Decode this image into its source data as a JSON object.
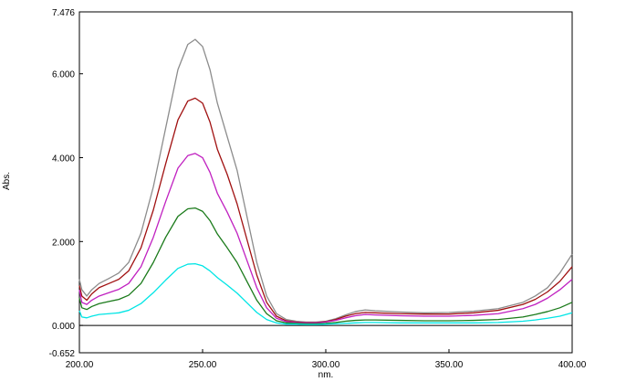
{
  "chart_data": {
    "type": "line",
    "xlabel": "nm.",
    "ylabel": "Abs.",
    "xlim": [
      200,
      400
    ],
    "ylim": [
      -0.652,
      7.476
    ],
    "x_ticks": [
      200,
      250,
      300,
      350,
      400
    ],
    "x_tick_labels": [
      "200.00",
      "250.00",
      "300.00",
      "350.00",
      "400.00"
    ],
    "y_ticks": [
      -0.652,
      0,
      2,
      4,
      6,
      7.476
    ],
    "y_tick_labels": [
      "-0.652",
      "0.000",
      "2.000",
      "4.000",
      "6.000",
      "7.476"
    ],
    "baseline": 0,
    "grid": false,
    "legend": "none",
    "series": [
      {
        "color": "#8c8c8c",
        "x": [
          200,
          201,
          203,
          205,
          208,
          212,
          216,
          220,
          225,
          230,
          235,
          240,
          244,
          247,
          250,
          253,
          256,
          260,
          264,
          268,
          272,
          276,
          280,
          284,
          288,
          292,
          296,
          300,
          304,
          308,
          312,
          316,
          320,
          330,
          340,
          350,
          360,
          370,
          380,
          385,
          390,
          395,
          400
        ],
        "y": [
          1.1,
          0.85,
          0.7,
          0.85,
          1.0,
          1.12,
          1.25,
          1.5,
          2.2,
          3.3,
          4.7,
          6.1,
          6.7,
          6.82,
          6.65,
          6.1,
          5.3,
          4.5,
          3.7,
          2.6,
          1.5,
          0.7,
          0.28,
          0.14,
          0.1,
          0.08,
          0.08,
          0.1,
          0.16,
          0.25,
          0.33,
          0.37,
          0.35,
          0.32,
          0.3,
          0.31,
          0.34,
          0.4,
          0.55,
          0.7,
          0.9,
          1.25,
          1.7
        ]
      },
      {
        "color": "#a01010",
        "x": [
          200,
          201,
          203,
          205,
          208,
          212,
          216,
          220,
          225,
          230,
          235,
          240,
          244,
          247,
          250,
          253,
          256,
          260,
          264,
          268,
          272,
          276,
          280,
          284,
          288,
          292,
          296,
          300,
          304,
          308,
          312,
          316,
          320,
          330,
          340,
          350,
          360,
          370,
          380,
          385,
          390,
          395,
          400
        ],
        "y": [
          0.95,
          0.7,
          0.6,
          0.75,
          0.9,
          1.0,
          1.1,
          1.3,
          1.85,
          2.75,
          3.85,
          4.9,
          5.35,
          5.42,
          5.3,
          4.85,
          4.2,
          3.6,
          2.9,
          2.05,
          1.2,
          0.55,
          0.22,
          0.11,
          0.08,
          0.07,
          0.07,
          0.09,
          0.14,
          0.22,
          0.28,
          0.31,
          0.3,
          0.28,
          0.27,
          0.27,
          0.3,
          0.36,
          0.5,
          0.62,
          0.8,
          1.05,
          1.4
        ]
      },
      {
        "color": "#c020c0",
        "x": [
          200,
          201,
          203,
          205,
          208,
          212,
          216,
          220,
          225,
          230,
          235,
          240,
          244,
          247,
          250,
          253,
          256,
          260,
          264,
          268,
          272,
          276,
          280,
          284,
          288,
          292,
          296,
          300,
          304,
          308,
          312,
          316,
          320,
          330,
          340,
          350,
          360,
          370,
          380,
          385,
          390,
          395,
          400
        ],
        "y": [
          0.85,
          0.55,
          0.5,
          0.6,
          0.7,
          0.78,
          0.86,
          1.0,
          1.4,
          2.1,
          2.95,
          3.75,
          4.05,
          4.1,
          4.0,
          3.65,
          3.15,
          2.7,
          2.2,
          1.55,
          0.9,
          0.42,
          0.17,
          0.09,
          0.07,
          0.06,
          0.06,
          0.08,
          0.12,
          0.18,
          0.23,
          0.26,
          0.25,
          0.23,
          0.22,
          0.22,
          0.24,
          0.28,
          0.4,
          0.5,
          0.65,
          0.85,
          1.1
        ]
      },
      {
        "color": "#1a7a1a",
        "x": [
          200,
          201,
          203,
          205,
          208,
          212,
          216,
          220,
          225,
          230,
          235,
          240,
          244,
          247,
          250,
          253,
          256,
          260,
          264,
          268,
          272,
          276,
          280,
          284,
          288,
          292,
          296,
          300,
          304,
          308,
          312,
          316,
          320,
          330,
          340,
          350,
          360,
          370,
          380,
          385,
          390,
          395,
          400
        ],
        "y": [
          0.65,
          0.42,
          0.38,
          0.45,
          0.52,
          0.57,
          0.62,
          0.72,
          1.0,
          1.5,
          2.1,
          2.6,
          2.78,
          2.8,
          2.72,
          2.5,
          2.18,
          1.85,
          1.5,
          1.05,
          0.6,
          0.28,
          0.11,
          0.06,
          0.05,
          0.04,
          0.04,
          0.05,
          0.07,
          0.1,
          0.12,
          0.13,
          0.13,
          0.12,
          0.11,
          0.11,
          0.12,
          0.14,
          0.2,
          0.26,
          0.33,
          0.42,
          0.55
        ]
      },
      {
        "color": "#00e5e5",
        "x": [
          200,
          201,
          203,
          205,
          208,
          212,
          216,
          220,
          225,
          230,
          235,
          240,
          244,
          247,
          250,
          253,
          256,
          260,
          264,
          268,
          272,
          276,
          280,
          284,
          288,
          292,
          296,
          300,
          304,
          308,
          312,
          316,
          320,
          330,
          340,
          350,
          360,
          370,
          380,
          385,
          390,
          395,
          400
        ],
        "y": [
          0.35,
          0.2,
          0.18,
          0.22,
          0.26,
          0.28,
          0.3,
          0.36,
          0.52,
          0.78,
          1.08,
          1.36,
          1.46,
          1.47,
          1.42,
          1.3,
          1.14,
          0.96,
          0.77,
          0.54,
          0.31,
          0.14,
          0.06,
          0.03,
          0.03,
          0.02,
          0.02,
          0.03,
          0.04,
          0.05,
          0.06,
          0.07,
          0.07,
          0.06,
          0.06,
          0.06,
          0.06,
          0.07,
          0.1,
          0.13,
          0.17,
          0.22,
          0.3
        ]
      }
    ]
  }
}
